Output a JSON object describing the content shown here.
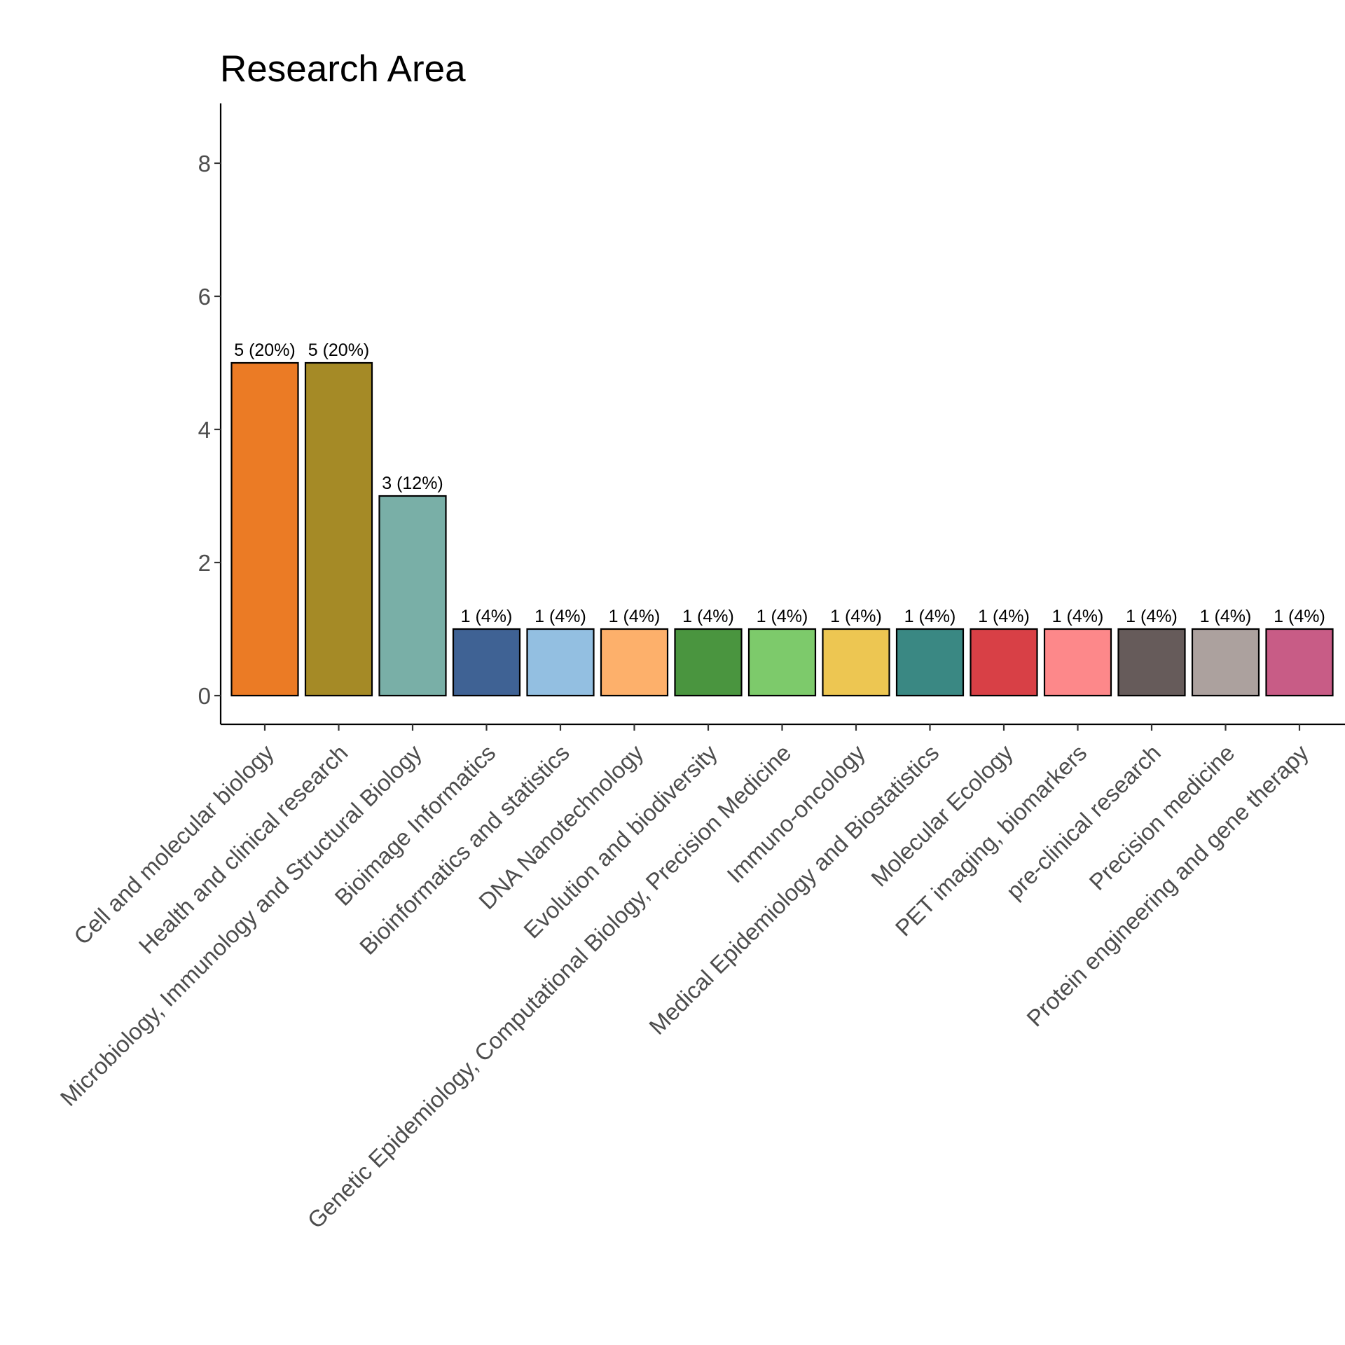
{
  "chart_data": {
    "type": "bar",
    "title": "Research Area",
    "xlabel": "",
    "ylabel": "",
    "ylim": [
      0,
      8.9
    ],
    "yticks": [
      0,
      2,
      4,
      6,
      8
    ],
    "grid": false,
    "legend": "none",
    "categories": [
      "Cell and molecular biology",
      "Health and clinical research",
      "Microbiology, Immunology and Structural Biology",
      "Bioimage Informatics",
      "Bioinformatics and statistics",
      "DNA Nanotechnology",
      "Evolution and biodiversity",
      "Genetic Epidemiology, Computational Biology, Precision Medicine",
      "Immuno-oncology",
      "Medical Epidemiology and Biostatistics",
      "Molecular Ecology",
      "PET imaging, biomarkers",
      "pre-clinical research",
      "Precision medicine",
      "Protein engineering and gene therapy"
    ],
    "values": [
      5,
      5,
      3,
      1,
      1,
      1,
      1,
      1,
      1,
      1,
      1,
      1,
      1,
      1,
      1
    ],
    "data_labels": [
      "5 (20%)",
      "5 (20%)",
      "3 (12%)",
      "1 (4%)",
      "1 (4%)",
      "1 (4%)",
      "1 (4%)",
      "1 (4%)",
      "1 (4%)",
      "1 (4%)",
      "1 (4%)",
      "1 (4%)",
      "1 (4%)",
      "1 (4%)",
      "1 (4%)"
    ],
    "colors": [
      "#EB7B25",
      "#A58A26",
      "#79AFA7",
      "#3F6294",
      "#93BFE1",
      "#FDB06B",
      "#4A953F",
      "#7DCA6B",
      "#EDC652",
      "#3A8883",
      "#D84046",
      "#FD888A",
      "#665B5A",
      "#ACA19E",
      "#C85C86"
    ]
  }
}
